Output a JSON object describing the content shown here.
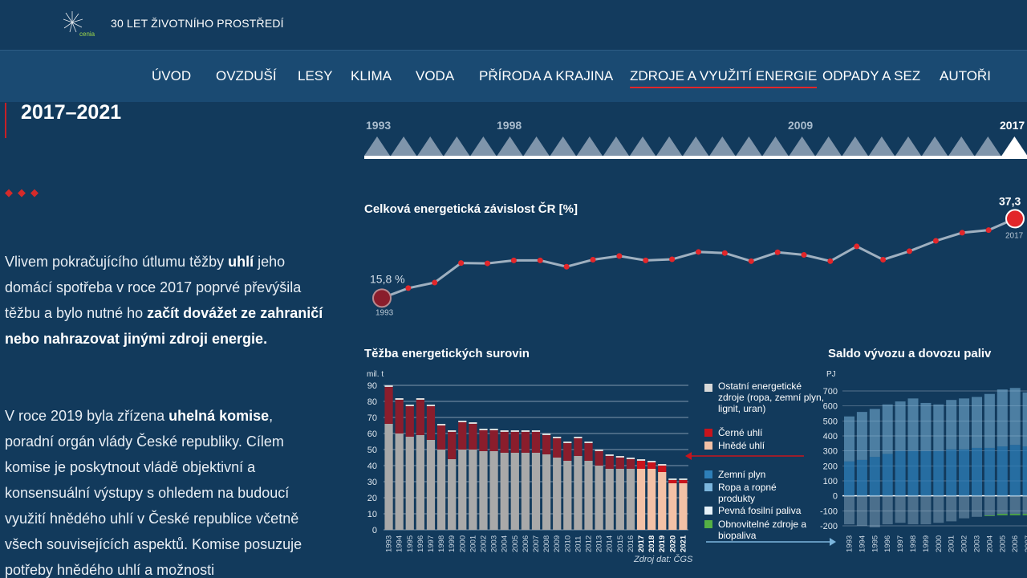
{
  "header": {
    "logo_text": "cenia",
    "site_title": "30 LET ŽIVOTNÍHO PROSTŘEDÍ"
  },
  "nav": {
    "items": [
      {
        "label": "ÚVOD"
      },
      {
        "label": "OVZDUŠÍ"
      },
      {
        "label": "LESY"
      },
      {
        "label": "KLIMA"
      },
      {
        "label": "VODA"
      },
      {
        "label": "PŘÍRODA A KRAJINA"
      },
      {
        "label": "ZDROJE A VYUŽITÍ ENERGIE",
        "active": true
      },
      {
        "label": "ODPADY A SEZ"
      },
      {
        "label": "AUTOŘI"
      }
    ]
  },
  "section": {
    "period": "2017–2021",
    "diamonds": "◆◆◆"
  },
  "text": {
    "p1_a": "Vlivem pokračujícího útlumu těžby ",
    "p1_b": "uhlí",
    "p1_c": " jeho domácí spotřeba v roce 2017 poprvé převýšila těžbu a bylo nutné ho ",
    "p1_d": "začít dovážet ze zahraničí nebo nahrazovat jinými zdroji energie.",
    "p2_a": "V roce 2019 byla zřízena ",
    "p2_b": "uhelná komise",
    "p2_c": ", poradní orgán vlády České republiky. Cílem komise je poskytnout vládě objektivní a konsensuální výstupy s ohledem na budoucí využití hnědého uhlí v České republice včetně všech souvisejících aspektů. Komise posuzuje potřeby hnědého uhlí a možnosti"
  },
  "timeline": {
    "years": [
      "1993",
      "1998",
      "2009",
      "2017"
    ],
    "current": "2017"
  },
  "chart_data": [
    {
      "type": "line",
      "title": "Celková energetická závislost ČR [%]",
      "x": [
        1993,
        1994,
        1995,
        1996,
        1997,
        1998,
        1999,
        2000,
        2001,
        2002,
        2003,
        2004,
        2005,
        2006,
        2007,
        2008,
        2009,
        2010,
        2011,
        2012,
        2013,
        2014,
        2015,
        2016,
        2017
      ],
      "values": [
        15.8,
        18.5,
        20.0,
        25.3,
        25.2,
        26.0,
        26.0,
        24.3,
        26.2,
        27.2,
        26.0,
        26.3,
        28.3,
        28.0,
        25.8,
        28.2,
        27.5,
        25.8,
        29.8,
        26.2,
        28.5,
        31.3,
        33.5,
        34.2,
        37.3
      ],
      "start_label": "15,8 %",
      "end_label": "37,3",
      "start_year_label": "1993",
      "end_year_label": "2017",
      "ylim": [
        10,
        40
      ]
    },
    {
      "type": "bar",
      "stacked": true,
      "title": "Těžba energetických surovin",
      "ylabel": "mil. t",
      "ylim": [
        0,
        90
      ],
      "yticks": [
        0,
        10,
        20,
        30,
        40,
        50,
        60,
        70,
        80,
        90
      ],
      "categories": [
        "1993",
        "1994",
        "1995",
        "1996",
        "1997",
        "1998",
        "1999",
        "2000",
        "2001",
        "2002",
        "2003",
        "2004",
        "2005",
        "2006",
        "2007",
        "2008",
        "2009",
        "2010",
        "2011",
        "2012",
        "2013",
        "2014",
        "2015",
        "2016",
        "2017",
        "2018",
        "2019",
        "2020",
        "2021"
      ],
      "series": [
        {
          "name": "Hnědé uhlí",
          "values": [
            66,
            60,
            58,
            59,
            56,
            50,
            44,
            50,
            50,
            49,
            49,
            48,
            48,
            48,
            48,
            47,
            45,
            43,
            46,
            43,
            40,
            38,
            38,
            38,
            38,
            38,
            36,
            29,
            29
          ]
        },
        {
          "name": "Černé uhlí",
          "values": [
            23,
            21,
            19,
            22,
            21,
            15,
            17,
            17,
            16,
            13,
            13,
            13,
            13,
            13,
            13,
            12,
            12,
            11,
            11,
            11,
            9,
            8,
            7,
            6,
            5,
            4,
            4,
            2,
            2
          ]
        },
        {
          "name": "Ostatní energetické zdroje",
          "values": [
            1,
            1,
            1,
            1,
            1,
            1,
            1,
            1,
            1,
            1,
            1,
            1,
            1,
            1,
            1,
            1,
            1,
            1,
            1,
            1,
            1,
            1,
            1,
            1,
            1,
            1,
            1,
            1,
            1
          ]
        }
      ],
      "source": "Zdroj dat: ČGS"
    },
    {
      "type": "bar",
      "stacked": true,
      "title": "Saldo vývozu a dovozu paliv",
      "ylabel": "PJ",
      "ylim": [
        -200,
        700
      ],
      "yticks": [
        -200,
        -100,
        0,
        100,
        200,
        300,
        400,
        500,
        600,
        700
      ],
      "categories": [
        "1993",
        "1994",
        "1995",
        "1996",
        "1997",
        "1998",
        "1999",
        "2000",
        "2001",
        "2002",
        "2003",
        "2004",
        "2005",
        "2006",
        "2007",
        "2008",
        "2009",
        "2010"
      ],
      "series": [
        {
          "name": "Zemní plyn",
          "values": [
            230,
            240,
            260,
            280,
            300,
            300,
            300,
            300,
            310,
            310,
            320,
            320,
            330,
            340,
            330,
            320,
            300,
            310
          ]
        },
        {
          "name": "Ropa a ropné produkty",
          "values": [
            300,
            320,
            320,
            330,
            330,
            350,
            320,
            310,
            330,
            340,
            340,
            360,
            380,
            380,
            360,
            360,
            340,
            350
          ]
        },
        {
          "name": "Pevná fosilní paliva",
          "values": [
            -190,
            -200,
            -210,
            -190,
            -180,
            -190,
            -190,
            -180,
            -170,
            -150,
            -140,
            -130,
            -120,
            -120,
            -120,
            -120,
            -110,
            -110
          ]
        },
        {
          "name": "Obnovitelné zdroje a biopaliva",
          "values": [
            0,
            0,
            0,
            0,
            0,
            0,
            0,
            0,
            0,
            0,
            0,
            -5,
            -10,
            -10,
            -10,
            -10,
            -10,
            -10
          ]
        }
      ]
    }
  ],
  "legend": {
    "other": "Ostatní energetické zdroje (ropa, zemní plyn, lignit, uran)",
    "black_coal": "Černé uhlí",
    "brown_coal": "Hnědé uhlí",
    "gas": "Zemní plyn",
    "oil": "Ropa a ropné produkty",
    "solid": "Pevná fosilní paliva",
    "renew": "Obnovitelné zdroje a biopaliva"
  },
  "colors": {
    "background": "#123a5c",
    "brown_coal": "#a9a9a9",
    "brown_coal_recent": "#f3c1a6",
    "black_coal": "#8a1d2c",
    "other": "#d9d9d9",
    "accent_red": "#e2262a",
    "gas": "#2e7fb8",
    "oil": "#7cb6dd",
    "solid": "#b7d3e6",
    "renew": "#55b045"
  }
}
